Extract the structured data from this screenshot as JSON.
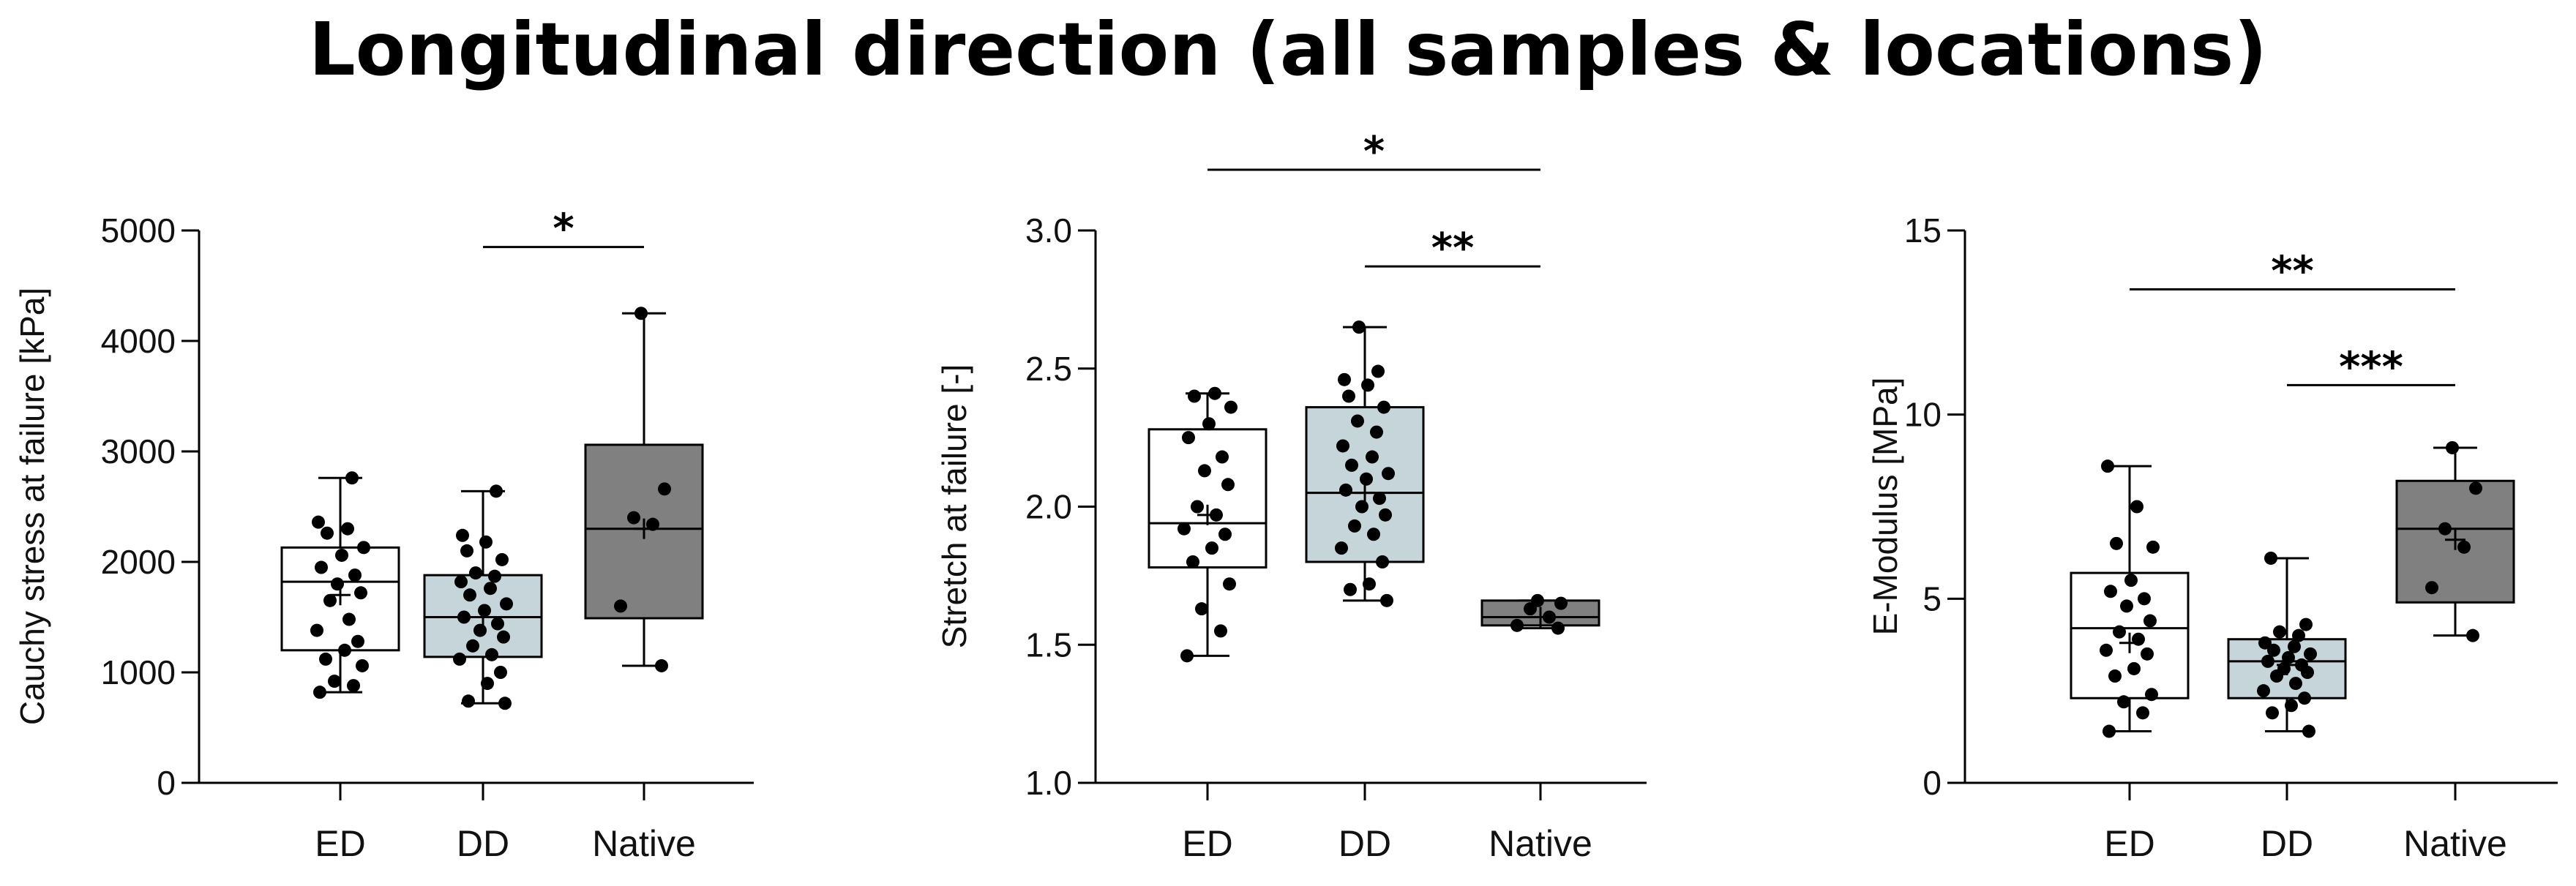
{
  "title": "Longitudinal direction (all samples & locations)",
  "colors": {
    "ED": "#ffffff",
    "DD": "#c5d5da",
    "Native": "#808080"
  },
  "chart_data": [
    {
      "type": "box",
      "ylabel": "Cauchy stress at failure [kPa]",
      "ylim": [
        0,
        5000
      ],
      "yticks": [
        0,
        1000,
        2000,
        3000,
        4000,
        5000
      ],
      "ytick_labels": [
        "0",
        "1000",
        "2000",
        "3000",
        "4000",
        "5000"
      ],
      "categories": [
        "ED",
        "DD",
        "Native"
      ],
      "groups": [
        {
          "name": "ED",
          "min": 820,
          "q1": 1200,
          "median": 1820,
          "mean": 1700,
          "q3": 2130,
          "max": 2760,
          "points": [
            820,
            880,
            920,
            1060,
            1120,
            1200,
            1280,
            1380,
            1480,
            1650,
            1720,
            1800,
            1880,
            1950,
            2060,
            2130,
            2260,
            2300,
            2360,
            2760
          ]
        },
        {
          "name": "DD",
          "min": 720,
          "q1": 1140,
          "median": 1500,
          "mean": 1500,
          "q3": 1880,
          "max": 2640,
          "points": [
            720,
            740,
            900,
            1000,
            1120,
            1160,
            1240,
            1320,
            1380,
            1440,
            1500,
            1560,
            1620,
            1700,
            1760,
            1820,
            1870,
            1900,
            2020,
            2100,
            2180,
            2240,
            2640
          ]
        },
        {
          "name": "Native",
          "min": 1060,
          "q1": 1490,
          "median": 2300,
          "mean": 2300,
          "q3": 3060,
          "max": 4250,
          "points": [
            1060,
            1600,
            2340,
            2400,
            2660,
            4250
          ]
        }
      ],
      "significance": [
        {
          "from": "DD",
          "to": "Native",
          "label": "*",
          "level": 4850
        }
      ]
    },
    {
      "type": "box",
      "ylabel": "Stretch at failure [-]",
      "ylim": [
        1.0,
        3.0
      ],
      "yticks": [
        1.0,
        1.5,
        2.0,
        2.5,
        3.0
      ],
      "ytick_labels": [
        "1.0",
        "1.5",
        "2.0",
        "2.5",
        "3.0"
      ],
      "categories": [
        "ED",
        "DD",
        "Native"
      ],
      "groups": [
        {
          "name": "ED",
          "min": 1.46,
          "q1": 1.78,
          "median": 1.94,
          "mean": 1.97,
          "q3": 2.28,
          "max": 2.41,
          "points": [
            1.46,
            1.55,
            1.63,
            1.72,
            1.8,
            1.85,
            1.9,
            1.92,
            1.97,
            2.0,
            2.08,
            2.13,
            2.18,
            2.25,
            2.3,
            2.36,
            2.4,
            2.41
          ]
        },
        {
          "name": "DD",
          "min": 1.66,
          "q1": 1.8,
          "median": 2.05,
          "mean": 2.05,
          "q3": 2.36,
          "max": 2.65,
          "points": [
            1.66,
            1.7,
            1.72,
            1.8,
            1.85,
            1.9,
            1.93,
            1.97,
            2.0,
            2.03,
            2.06,
            2.1,
            2.12,
            2.15,
            2.18,
            2.22,
            2.27,
            2.31,
            2.36,
            2.4,
            2.44,
            2.46,
            2.49,
            2.65
          ]
        },
        {
          "name": "Native",
          "min": 1.56,
          "q1": 1.57,
          "median": 1.6,
          "mean": 1.6,
          "q3": 1.66,
          "max": 1.66,
          "points": [
            1.56,
            1.57,
            1.6,
            1.63,
            1.65,
            1.66
          ]
        }
      ],
      "significance": [
        {
          "from": "ED",
          "to": "Native",
          "label": "*",
          "level": 3.22
        },
        {
          "from": "DD",
          "to": "Native",
          "label": "**",
          "level": 2.87
        }
      ]
    },
    {
      "type": "box",
      "ylabel": "E-Modulus [MPa]",
      "ylim": [
        0,
        15
      ],
      "yticks": [
        0,
        5,
        10,
        15
      ],
      "ytick_labels": [
        "0",
        "5",
        "10",
        "15"
      ],
      "categories": [
        "ED",
        "DD",
        "Native"
      ],
      "groups": [
        {
          "name": "ED",
          "min": 1.4,
          "q1": 2.3,
          "median": 4.2,
          "mean": 3.8,
          "q3": 5.7,
          "max": 8.6,
          "points": [
            1.4,
            1.9,
            2.2,
            2.4,
            2.9,
            3.1,
            3.5,
            3.6,
            3.9,
            4.1,
            4.4,
            4.8,
            5.0,
            5.2,
            5.5,
            6.4,
            6.5,
            7.5,
            8.6
          ]
        },
        {
          "name": "DD",
          "min": 1.4,
          "q1": 2.3,
          "median": 3.3,
          "mean": 3.2,
          "q3": 3.9,
          "max": 6.1,
          "points": [
            1.4,
            1.9,
            2.1,
            2.3,
            2.5,
            2.7,
            2.9,
            3.0,
            3.1,
            3.2,
            3.3,
            3.4,
            3.5,
            3.6,
            3.7,
            3.8,
            4.0,
            4.1,
            4.3,
            6.1
          ]
        },
        {
          "name": "Native",
          "min": 4.0,
          "q1": 4.9,
          "median": 6.9,
          "mean": 6.6,
          "q3": 8.2,
          "max": 9.1,
          "points": [
            4.0,
            5.3,
            6.4,
            6.9,
            8.0,
            9.1
          ]
        }
      ],
      "significance": [
        {
          "from": "ED",
          "to": "Native",
          "label": "**",
          "level": 13.4
        },
        {
          "from": "DD",
          "to": "Native",
          "label": "***",
          "level": 10.8
        }
      ]
    }
  ]
}
